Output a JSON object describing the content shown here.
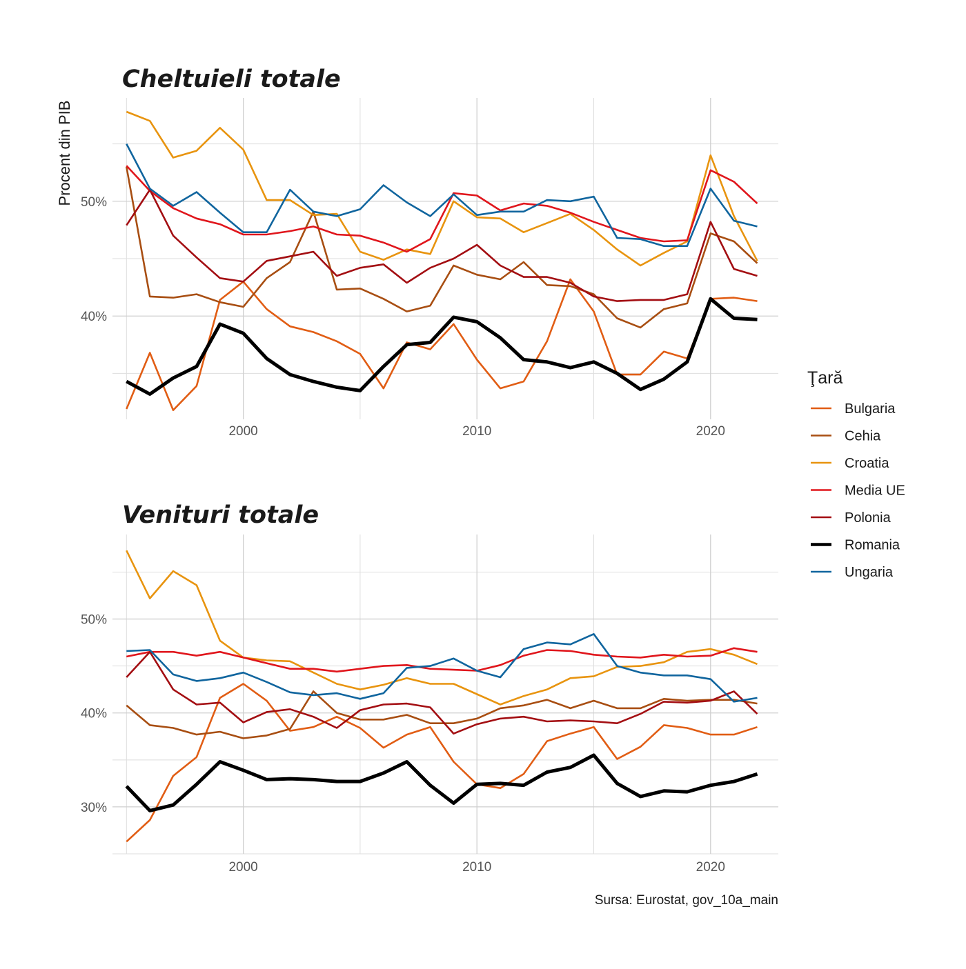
{
  "chart_data": [
    {
      "type": "line",
      "title": "Cheltuieli totale",
      "ylabel": "Procent din PIB",
      "xlabel": "",
      "xlim": [
        1994.4,
        2022.9
      ],
      "ylim": [
        31,
        59
      ],
      "x_ticks": [
        2000,
        2010,
        2020
      ],
      "x_tick_labels": [
        "2000",
        "2010",
        "2020"
      ],
      "y_ticks": [
        40,
        50
      ],
      "y_tick_labels": [
        "40%",
        "50%"
      ],
      "x": [
        1995,
        1996,
        1997,
        1998,
        1999,
        2000,
        2001,
        2002,
        2003,
        2004,
        2005,
        2006,
        2007,
        2008,
        2009,
        2010,
        2011,
        2012,
        2013,
        2014,
        2015,
        2016,
        2017,
        2018,
        2019,
        2020,
        2021,
        2022
      ],
      "series": [
        {
          "name": "Bulgaria",
          "values": [
            31.9,
            36.8,
            31.8,
            33.9,
            41.4,
            43.0,
            40.6,
            39.1,
            38.6,
            37.8,
            36.7,
            33.7,
            37.7,
            37.1,
            39.3,
            36.2,
            33.7,
            34.3,
            37.8,
            43.2,
            40.4,
            34.9,
            34.9,
            36.9,
            36.3,
            41.5,
            41.6,
            41.3
          ]
        },
        {
          "name": "Cehia",
          "values": [
            53.0,
            41.7,
            41.6,
            41.9,
            41.2,
            40.8,
            43.3,
            44.7,
            49.1,
            42.3,
            42.4,
            41.5,
            40.4,
            40.9,
            44.4,
            43.6,
            43.2,
            44.7,
            42.7,
            42.6,
            41.9,
            39.8,
            39.0,
            40.6,
            41.1,
            47.2,
            46.5,
            44.6
          ]
        },
        {
          "name": "Croatia",
          "values": [
            57.8,
            57.0,
            53.8,
            54.4,
            56.4,
            54.5,
            50.1,
            50.1,
            48.8,
            48.9,
            45.6,
            44.9,
            45.8,
            45.4,
            50.0,
            48.6,
            48.5,
            47.3,
            48.1,
            48.9,
            47.5,
            45.8,
            44.4,
            45.5,
            46.5,
            54.0,
            48.7,
            44.8
          ]
        },
        {
          "name": "Media UE",
          "values": [
            53.1,
            50.9,
            49.4,
            48.5,
            48.0,
            47.1,
            47.1,
            47.4,
            47.8,
            47.1,
            47.0,
            46.4,
            45.6,
            46.7,
            50.7,
            50.5,
            49.2,
            49.8,
            49.6,
            49.0,
            48.2,
            47.5,
            46.8,
            46.5,
            46.6,
            52.7,
            51.7,
            49.8
          ]
        },
        {
          "name": "Polonia",
          "values": [
            47.9,
            51.0,
            47.0,
            45.1,
            43.3,
            43.0,
            44.8,
            45.2,
            45.6,
            43.5,
            44.2,
            44.5,
            42.9,
            44.2,
            45.0,
            46.2,
            44.4,
            43.4,
            43.4,
            42.9,
            41.7,
            41.3,
            41.4,
            41.4,
            41.9,
            48.2,
            44.1,
            43.5
          ]
        },
        {
          "name": "Romania",
          "values": [
            34.3,
            33.2,
            34.6,
            35.6,
            39.3,
            38.5,
            36.3,
            34.9,
            34.3,
            33.8,
            33.5,
            35.6,
            37.5,
            37.7,
            39.9,
            39.5,
            38.1,
            36.2,
            36.0,
            35.5,
            36.0,
            35.0,
            33.6,
            34.5,
            36.0,
            41.5,
            39.8,
            39.7
          ]
        },
        {
          "name": "Ungaria",
          "values": [
            55.0,
            51.1,
            49.6,
            50.8,
            49.0,
            47.3,
            47.3,
            51.0,
            49.1,
            48.7,
            49.3,
            51.4,
            49.9,
            48.7,
            50.6,
            48.8,
            49.1,
            49.1,
            50.1,
            50.0,
            50.4,
            46.8,
            46.7,
            46.1,
            46.1,
            51.1,
            48.3,
            47.8
          ]
        }
      ]
    },
    {
      "type": "line",
      "title": "Venituri totale",
      "ylabel": "",
      "xlabel": "",
      "xlim": [
        1994.4,
        2022.9
      ],
      "ylim": [
        25,
        59
      ],
      "x_ticks": [
        2000,
        2010,
        2020
      ],
      "x_tick_labels": [
        "2000",
        "2010",
        "2020"
      ],
      "y_ticks": [
        30,
        40,
        50
      ],
      "y_tick_labels": [
        "30%",
        "40%",
        "50%"
      ],
      "x": [
        1995,
        1996,
        1997,
        1998,
        1999,
        2000,
        2001,
        2002,
        2003,
        2004,
        2005,
        2006,
        2007,
        2008,
        2009,
        2010,
        2011,
        2012,
        2013,
        2014,
        2015,
        2016,
        2017,
        2018,
        2019,
        2020,
        2021,
        2022
      ],
      "series": [
        {
          "name": "Bulgaria",
          "values": [
            26.3,
            28.6,
            33.3,
            35.3,
            41.6,
            43.1,
            41.3,
            38.1,
            38.5,
            39.6,
            38.4,
            36.3,
            37.7,
            38.5,
            34.8,
            32.4,
            32.0,
            33.5,
            37.0,
            37.8,
            38.5,
            35.1,
            36.4,
            38.7,
            38.4,
            37.7,
            37.7,
            38.5
          ]
        },
        {
          "name": "Cehia",
          "values": [
            40.8,
            38.7,
            38.4,
            37.7,
            38.0,
            37.3,
            37.6,
            38.3,
            42.3,
            40.0,
            39.3,
            39.3,
            39.8,
            38.9,
            38.9,
            39.4,
            40.5,
            40.8,
            41.4,
            40.5,
            41.3,
            40.5,
            40.5,
            41.5,
            41.3,
            41.4,
            41.4,
            41.0
          ]
        },
        {
          "name": "Croatia",
          "values": [
            57.3,
            52.2,
            55.1,
            53.6,
            47.7,
            45.9,
            45.6,
            45.5,
            44.3,
            43.1,
            42.5,
            43.0,
            43.7,
            43.1,
            43.1,
            42.0,
            40.9,
            41.8,
            42.5,
            43.7,
            43.9,
            44.9,
            45.0,
            45.4,
            46.5,
            46.8,
            46.2,
            45.2
          ]
        },
        {
          "name": "Media UE",
          "values": [
            46.0,
            46.5,
            46.5,
            46.1,
            46.5,
            45.9,
            45.3,
            44.7,
            44.7,
            44.4,
            44.7,
            45.0,
            45.1,
            44.7,
            44.6,
            44.5,
            45.1,
            46.1,
            46.7,
            46.6,
            46.2,
            46.0,
            45.9,
            46.2,
            46.0,
            46.1,
            46.9,
            46.5
          ]
        },
        {
          "name": "Polonia",
          "values": [
            43.8,
            46.5,
            42.5,
            40.9,
            41.1,
            39.0,
            40.1,
            40.4,
            39.6,
            38.4,
            40.3,
            40.9,
            41.0,
            40.6,
            37.8,
            38.8,
            39.4,
            39.6,
            39.1,
            39.2,
            39.1,
            38.9,
            39.9,
            41.2,
            41.1,
            41.3,
            42.3,
            39.9
          ]
        },
        {
          "name": "Romania",
          "values": [
            32.2,
            29.6,
            30.2,
            32.4,
            34.8,
            33.9,
            32.9,
            33.0,
            32.9,
            32.7,
            32.7,
            33.6,
            34.8,
            32.3,
            30.4,
            32.4,
            32.5,
            32.3,
            33.7,
            34.2,
            35.5,
            32.5,
            31.1,
            31.7,
            31.6,
            32.3,
            32.7,
            33.5
          ]
        },
        {
          "name": "Ungaria",
          "values": [
            46.6,
            46.7,
            44.1,
            43.4,
            43.7,
            44.3,
            43.3,
            42.2,
            41.9,
            42.1,
            41.5,
            42.1,
            44.8,
            45.0,
            45.8,
            44.5,
            43.8,
            46.8,
            47.5,
            47.3,
            48.4,
            45.0,
            44.3,
            44.0,
            44.0,
            43.6,
            41.2,
            41.6
          ]
        }
      ]
    }
  ],
  "colors": {
    "Bulgaria": "#e15d14",
    "Cehia": "#a84e12",
    "Croatia": "#e8940f",
    "Media UE": "#e0161c",
    "Polonia": "#a30e12",
    "Romania": "#000000",
    "Ungaria": "#10659e"
  },
  "highlight_series": "Romania",
  "legend": {
    "title": "Ţară",
    "position": "right",
    "entries": [
      "Bulgaria",
      "Cehia",
      "Croatia",
      "Media UE",
      "Polonia",
      "Romania",
      "Ungaria"
    ]
  },
  "caption": "Sursa: Eurostat, gov_10a_main",
  "grid": true
}
